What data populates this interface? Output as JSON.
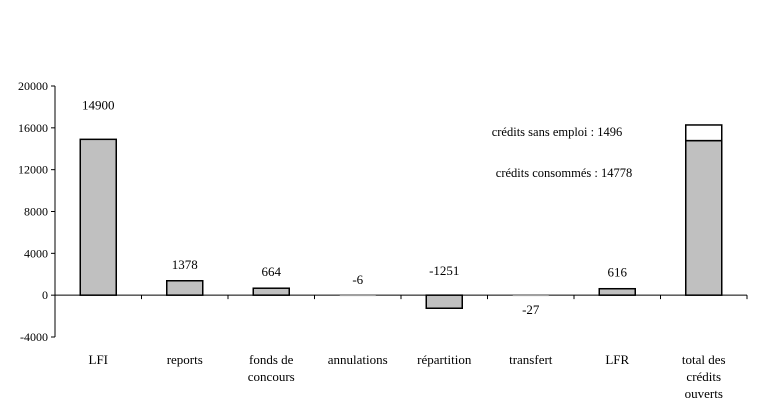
{
  "chart_data": {
    "type": "bar",
    "title": "",
    "xlabel": "",
    "ylabel": "",
    "ylim": [
      -4000,
      20000
    ],
    "yticks": [
      20000,
      16000,
      12000,
      8000,
      4000,
      0,
      -4000
    ],
    "ytick_labels": [
      "20000",
      "16000",
      "12000",
      "8000",
      "4000",
      "0",
      "-4000"
    ],
    "categories": [
      [
        "LFI"
      ],
      [
        "reports"
      ],
      [
        "fonds de",
        "concours"
      ],
      [
        "annulations"
      ],
      [
        "répartition"
      ],
      [
        "transfert"
      ],
      [
        "LFR"
      ],
      [
        "total des",
        "crédits",
        "ouverts"
      ]
    ],
    "values": [
      14900,
      1378,
      664,
      -6,
      -1251,
      -27,
      616,
      14778
    ],
    "data_labels": [
      "14900",
      "1378",
      "664",
      "-6",
      "-1251",
      "-27",
      "616",
      ""
    ],
    "stacked_last": {
      "consumed": 14778,
      "unused": 1496
    },
    "annotations": [
      "crédits sans emploi : 1496",
      "crédits consommés : 14778"
    ],
    "colors": {
      "bar_fill": "#c0c0c0",
      "unused_fill": "#ffffff",
      "stroke": "#000000"
    },
    "grid": false,
    "legend": "none"
  }
}
